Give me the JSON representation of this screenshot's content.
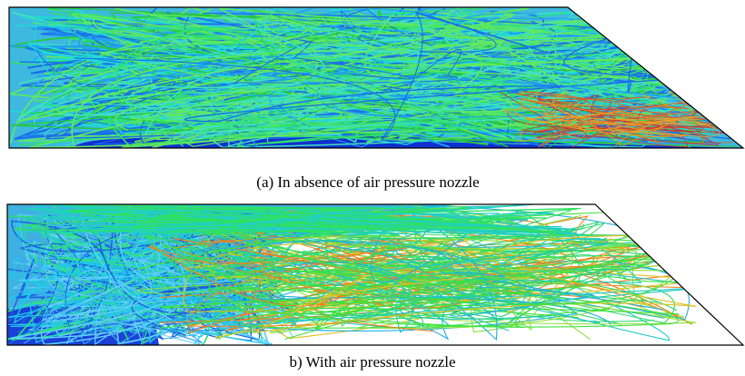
{
  "figure": {
    "panels": [
      {
        "caption": "(a) In absence of air pressure nozzle"
      },
      {
        "caption": "b) With air pressure nozzle"
      }
    ]
  }
}
